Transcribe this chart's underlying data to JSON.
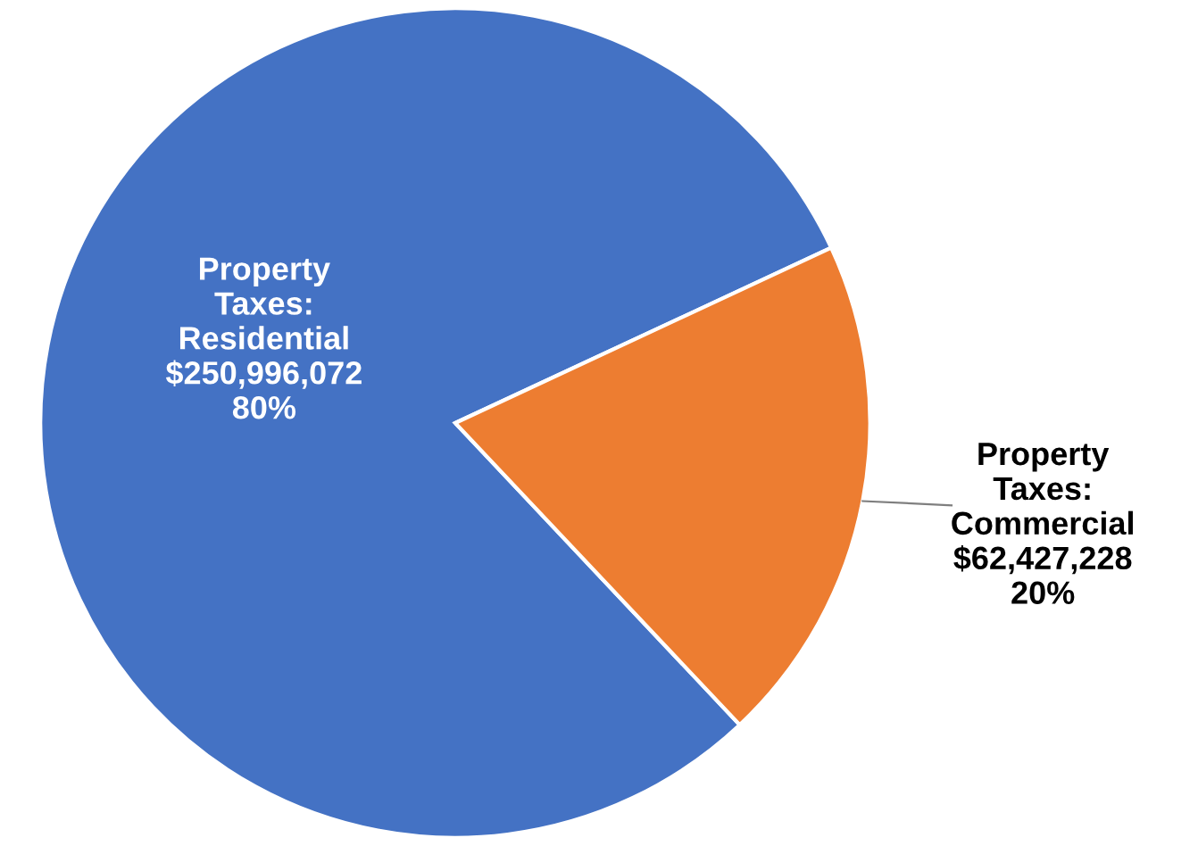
{
  "chart_data": {
    "type": "pie",
    "categories": [
      "Property\nTaxes:\nResidential",
      "Property\nTaxes:\nCommercial"
    ],
    "values": [
      250996072,
      62427228
    ],
    "value_labels": [
      "$250,996,072\n80%",
      "$62,427,228\n20%"
    ],
    "colors": [
      "#4472c4",
      "#ed7d31"
    ],
    "legend": false
  }
}
